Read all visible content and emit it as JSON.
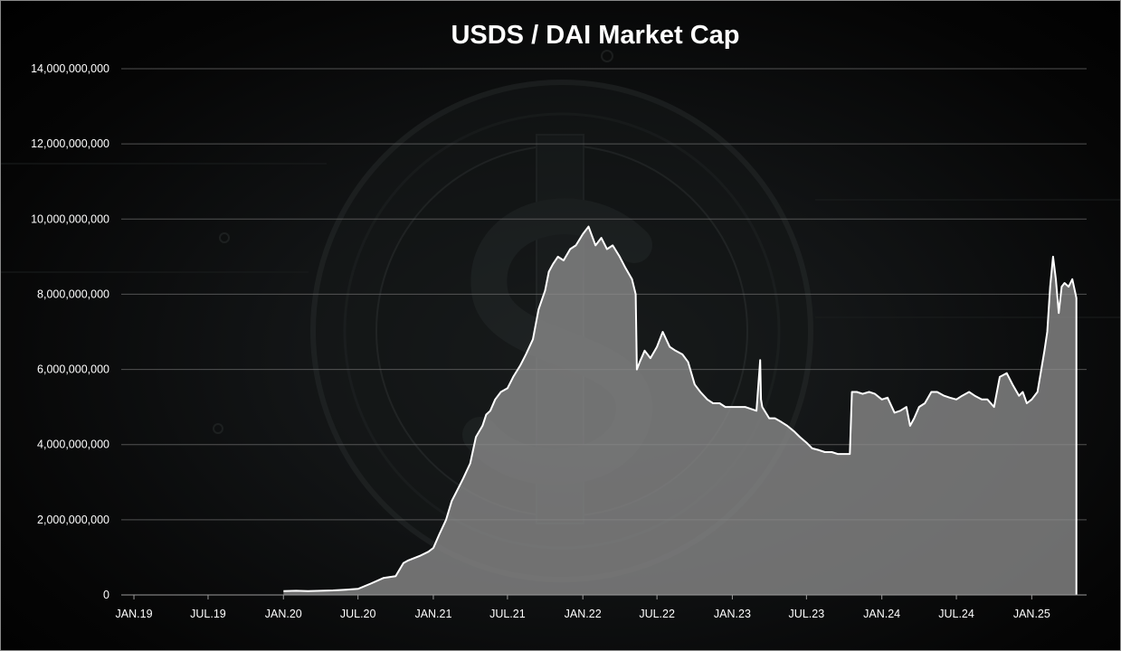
{
  "chart_data": {
    "type": "area",
    "title": "USDS / DAI Market Cap",
    "xlabel": "",
    "ylabel": "",
    "ylim": [
      0,
      14000000000
    ],
    "y_ticks": [
      0,
      2000000000,
      4000000000,
      6000000000,
      8000000000,
      10000000000,
      12000000000,
      14000000000
    ],
    "y_tick_labels": [
      "0",
      "2,000,000,000",
      "4,000,000,000",
      "6,000,000,000",
      "8,000,000,000",
      "10,000,000,000",
      "12,000,000,000",
      "14,000,000,000"
    ],
    "x_range": [
      "2018-12-01",
      "2025-05-15"
    ],
    "x_ticks": [
      "2019-01-01",
      "2019-07-01",
      "2020-01-01",
      "2020-07-01",
      "2021-01-01",
      "2021-07-01",
      "2022-01-01",
      "2022-07-01",
      "2023-01-01",
      "2023-07-01",
      "2024-01-01",
      "2024-07-01",
      "2025-01-01"
    ],
    "x_tick_labels": [
      "JAN.19",
      "JUL.19",
      "JAN.20",
      "JUL.20",
      "JAN.21",
      "JUL.21",
      "JAN.22",
      "JUL.22",
      "JAN.23",
      "JUL.23",
      "JAN.24",
      "JUL.24",
      "JAN.25"
    ],
    "grid": true,
    "legend": "none",
    "colors": {
      "line": "#ffffff",
      "area": "#8c8c8c"
    },
    "series": [
      {
        "x": [
          "2020-01-01",
          "2020-02-01",
          "2020-03-01",
          "2020-04-01",
          "2020-05-01",
          "2020-06-01",
          "2020-07-01",
          "2020-08-01",
          "2020-09-01",
          "2020-10-01",
          "2020-10-20",
          "2020-11-01",
          "2020-12-01",
          "2020-12-20",
          "2021-01-01",
          "2021-01-15",
          "2021-02-01",
          "2021-02-15",
          "2021-03-01",
          "2021-03-15",
          "2021-04-01",
          "2021-04-15",
          "2021-05-01",
          "2021-05-10",
          "2021-05-20",
          "2021-06-01",
          "2021-06-15",
          "2021-07-01",
          "2021-07-15",
          "2021-08-01",
          "2021-08-15",
          "2021-09-01",
          "2021-09-15",
          "2021-10-01",
          "2021-10-10",
          "2021-10-20",
          "2021-11-01",
          "2021-11-15",
          "2021-12-01",
          "2021-12-15",
          "2022-01-01",
          "2022-01-15",
          "2022-02-01",
          "2022-02-15",
          "2022-03-01",
          "2022-03-15",
          "2022-04-01",
          "2022-04-15",
          "2022-05-01",
          "2022-05-10",
          "2022-05-13",
          "2022-05-20",
          "2022-06-01",
          "2022-06-15",
          "2022-07-01",
          "2022-07-15",
          "2022-08-01",
          "2022-08-15",
          "2022-09-01",
          "2022-09-15",
          "2022-10-01",
          "2022-10-15",
          "2022-11-01",
          "2022-11-15",
          "2022-12-01",
          "2022-12-15",
          "2023-01-01",
          "2023-01-15",
          "2023-02-01",
          "2023-02-15",
          "2023-03-01",
          "2023-03-10",
          "2023-03-12",
          "2023-03-15",
          "2023-04-01",
          "2023-04-15",
          "2023-05-01",
          "2023-05-15",
          "2023-06-01",
          "2023-06-15",
          "2023-07-01",
          "2023-07-15",
          "2023-08-01",
          "2023-08-15",
          "2023-09-01",
          "2023-09-15",
          "2023-10-01",
          "2023-10-15",
          "2023-10-20",
          "2023-11-01",
          "2023-11-15",
          "2023-12-01",
          "2023-12-15",
          "2024-01-01",
          "2024-01-15",
          "2024-02-01",
          "2024-02-15",
          "2024-03-01",
          "2024-03-10",
          "2024-03-20",
          "2024-04-01",
          "2024-04-15",
          "2024-05-01",
          "2024-05-15",
          "2024-06-01",
          "2024-06-15",
          "2024-07-01",
          "2024-07-15",
          "2024-08-01",
          "2024-08-15",
          "2024-09-01",
          "2024-09-15",
          "2024-10-01",
          "2024-10-15",
          "2024-11-01",
          "2024-11-15",
          "2024-12-01",
          "2024-12-10",
          "2024-12-20",
          "2025-01-01",
          "2025-01-15",
          "2025-02-01",
          "2025-02-08",
          "2025-02-15",
          "2025-02-22",
          "2025-03-01",
          "2025-03-08",
          "2025-03-15",
          "2025-03-22",
          "2025-04-01",
          "2025-04-10",
          "2025-04-20"
        ],
        "values": [
          100000000,
          110000000,
          100000000,
          110000000,
          120000000,
          140000000,
          160000000,
          300000000,
          450000000,
          500000000,
          850000000,
          920000000,
          1050000000,
          1150000000,
          1250000000,
          1600000000,
          2000000000,
          2500000000,
          2800000000,
          3100000000,
          3500000000,
          4200000000,
          4500000000,
          4800000000,
          4900000000,
          5200000000,
          5400000000,
          5500000000,
          5800000000,
          6100000000,
          6400000000,
          6800000000,
          7600000000,
          8100000000,
          8600000000,
          8800000000,
          9000000000,
          8900000000,
          9200000000,
          9300000000,
          9600000000,
          9800000000,
          9300000000,
          9500000000,
          9200000000,
          9300000000,
          9000000000,
          8700000000,
          8400000000,
          8000000000,
          6000000000,
          6200000000,
          6500000000,
          6300000000,
          6600000000,
          7000000000,
          6600000000,
          6500000000,
          6400000000,
          6200000000,
          5600000000,
          5400000000,
          5200000000,
          5100000000,
          5100000000,
          5000000000,
          5000000000,
          5000000000,
          5000000000,
          4950000000,
          4900000000,
          6250000000,
          5200000000,
          5000000000,
          4700000000,
          4700000000,
          4600000000,
          4500000000,
          4350000000,
          4200000000,
          4050000000,
          3900000000,
          3850000000,
          3800000000,
          3800000000,
          3750000000,
          3750000000,
          3750000000,
          5400000000,
          5400000000,
          5350000000,
          5400000000,
          5350000000,
          5200000000,
          5250000000,
          4850000000,
          4900000000,
          5000000000,
          4500000000,
          4700000000,
          5000000000,
          5100000000,
          5400000000,
          5400000000,
          5300000000,
          5250000000,
          5200000000,
          5300000000,
          5400000000,
          5300000000,
          5200000000,
          5200000000,
          5000000000,
          5800000000,
          5900000000,
          5600000000,
          5300000000,
          5400000000,
          5100000000,
          5200000000,
          5400000000,
          6500000000,
          7000000000,
          8200000000,
          9000000000,
          8400000000,
          7500000000,
          8200000000,
          8300000000,
          8200000000,
          8400000000,
          7900000000
        ]
      }
    ]
  }
}
